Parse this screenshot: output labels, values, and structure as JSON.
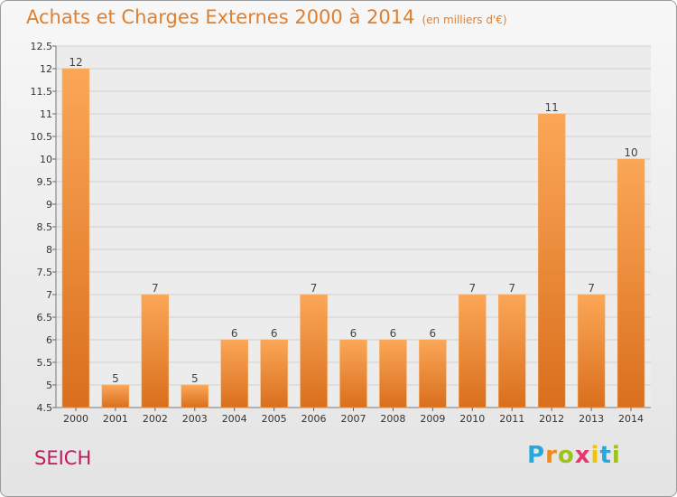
{
  "header": {
    "title": "Achats et Charges Externes 2000 à 2014",
    "unit": "(en milliers d'€)"
  },
  "footer": {
    "commune": "SEICH",
    "logo_letters": [
      "P",
      "r",
      "o",
      "x",
      "i",
      "t",
      "i"
    ]
  },
  "colors": {
    "title": "#e07f2e",
    "commune": "#c2195c",
    "bar_top": "#fba757",
    "bar_bottom": "#d96f1d",
    "grid": "#d0d0d0"
  },
  "chart_data": {
    "type": "bar",
    "title": "Achats et Charges Externes 2000 à 2014",
    "subtitle": "(en milliers d'€)",
    "categories": [
      "2000",
      "2001",
      "2002",
      "2003",
      "2004",
      "2005",
      "2006",
      "2007",
      "2008",
      "2009",
      "2010",
      "2011",
      "2012",
      "2013",
      "2014"
    ],
    "values": [
      12,
      5,
      7,
      5,
      6,
      6,
      7,
      6,
      6,
      6,
      7,
      7,
      11,
      7,
      10
    ],
    "value_labels": [
      "12",
      "5",
      "7",
      "5",
      "6",
      "6",
      "7",
      "6",
      "6",
      "6",
      "7",
      "7",
      "11",
      "7",
      "10"
    ],
    "ylim": [
      4.5,
      12.5
    ],
    "yticks": [
      "4.5",
      "5",
      "5.5",
      "6",
      "6.5",
      "7",
      "7.5",
      "8",
      "8.5",
      "9",
      "9.5",
      "10",
      "10.5",
      "11",
      "11.5",
      "12",
      "12.5"
    ],
    "grid": true,
    "legend": "none"
  }
}
